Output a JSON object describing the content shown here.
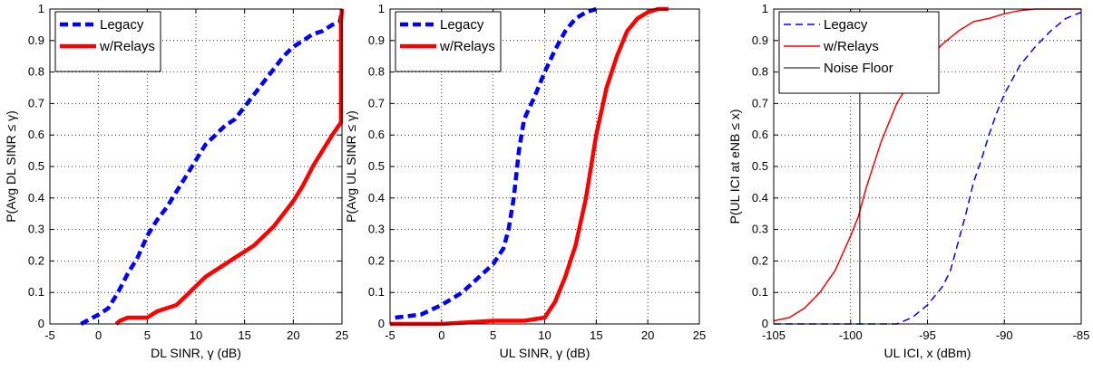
{
  "chart_data": [
    {
      "type": "line",
      "xlabel": "DL SINR, γ (dB)",
      "ylabel": "P(Avg DL SINR ≤ γ)",
      "xlim": [
        -5,
        25
      ],
      "ylim": [
        0,
        1
      ],
      "xticks": [
        "-5",
        "0",
        "5",
        "10",
        "15",
        "20",
        "25"
      ],
      "yticks": [
        "0",
        "0.1",
        "0.2",
        "0.3",
        "0.4",
        "0.5",
        "0.6",
        "0.7",
        "0.8",
        "0.9",
        "1"
      ],
      "grid": true,
      "legend": "top-left",
      "series": [
        {
          "name": "Legacy",
          "color": "#0000ff",
          "style": "dashed",
          "width": "thick",
          "x": [
            -1.8,
            -1.2,
            0,
            1,
            2,
            3,
            4,
            5,
            6,
            7,
            8,
            9,
            10,
            11,
            12,
            13,
            14,
            15,
            16,
            17,
            18,
            19,
            20,
            21,
            22,
            23,
            24,
            24.8,
            25
          ],
          "y": [
            0,
            0.01,
            0.03,
            0.05,
            0.1,
            0.16,
            0.21,
            0.28,
            0.33,
            0.37,
            0.42,
            0.47,
            0.52,
            0.57,
            0.6,
            0.63,
            0.65,
            0.69,
            0.73,
            0.77,
            0.81,
            0.85,
            0.88,
            0.9,
            0.92,
            0.93,
            0.95,
            0.96,
            1.0
          ]
        },
        {
          "name": "w/Relays",
          "color": "#ff0000",
          "style": "solid",
          "width": "thick",
          "x": [
            1.8,
            2.2,
            3,
            5,
            6,
            8,
            9,
            10,
            11,
            13,
            14,
            15,
            16,
            17,
            18,
            19,
            20,
            21,
            22,
            23,
            24,
            24.9,
            24.9,
            25
          ],
          "y": [
            0,
            0.01,
            0.02,
            0.02,
            0.04,
            0.06,
            0.09,
            0.12,
            0.15,
            0.19,
            0.21,
            0.23,
            0.25,
            0.28,
            0.31,
            0.35,
            0.39,
            0.44,
            0.5,
            0.55,
            0.6,
            0.64,
            0.96,
            1.0
          ]
        }
      ]
    },
    {
      "type": "line",
      "xlabel": "UL SINR, γ (dB)",
      "ylabel": "P(Avg UL SINR ≤ γ)",
      "xlim": [
        -5,
        25
      ],
      "ylim": [
        0,
        1
      ],
      "xticks": [
        "-5",
        "0",
        "5",
        "10",
        "15",
        "20",
        "25"
      ],
      "yticks": [
        "0",
        "0.1",
        "0.2",
        "0.3",
        "0.4",
        "0.5",
        "0.6",
        "0.7",
        "0.8",
        "0.9",
        "1"
      ],
      "grid": true,
      "legend": "top-left",
      "series": [
        {
          "name": "Legacy",
          "color": "#0000ff",
          "style": "dashed",
          "width": "thick",
          "x": [
            -4.5,
            -2,
            0,
            2,
            3,
            4,
            5,
            6,
            6.5,
            7,
            7.5,
            8,
            9,
            10,
            11,
            12,
            13,
            14,
            15
          ],
          "y": [
            0.02,
            0.03,
            0.06,
            0.1,
            0.13,
            0.16,
            0.19,
            0.24,
            0.3,
            0.4,
            0.55,
            0.65,
            0.72,
            0.8,
            0.87,
            0.93,
            0.97,
            0.99,
            1.0
          ]
        },
        {
          "name": "w/Relays",
          "color": "#ff0000",
          "style": "solid",
          "width": "thick",
          "x": [
            -5,
            0,
            5,
            8,
            10,
            11,
            12,
            13,
            14,
            15,
            16,
            17,
            18,
            19,
            20,
            21,
            22
          ],
          "y": [
            0,
            0,
            0.01,
            0.01,
            0.02,
            0.07,
            0.15,
            0.25,
            0.4,
            0.6,
            0.75,
            0.85,
            0.93,
            0.97,
            0.99,
            1.0,
            1.0
          ]
        }
      ]
    },
    {
      "type": "line",
      "xlabel": "UL ICI, x (dBm)",
      "ylabel": "P(UL ICI at eNB ≤ x)",
      "xlim": [
        -105,
        -85
      ],
      "ylim": [
        0,
        1
      ],
      "xticks": [
        "-105",
        "-100",
        "-95",
        "-90",
        "-85"
      ],
      "yticks": [
        "0",
        "0.1",
        "0.2",
        "0.3",
        "0.4",
        "0.5",
        "0.6",
        "0.7",
        "0.8",
        "0.9",
        "1"
      ],
      "grid": true,
      "legend": "top-left",
      "series": [
        {
          "name": "Legacy",
          "color": "#0000ff",
          "style": "dashed",
          "width": "thin",
          "x": [
            -105,
            -100,
            -97,
            -96,
            -95,
            -94,
            -93.5,
            -93,
            -92.5,
            -92,
            -91.5,
            -91,
            -90.5,
            -90,
            -89,
            -88,
            -87,
            -86,
            -85
          ],
          "y": [
            0,
            0,
            0,
            0.02,
            0.06,
            0.12,
            0.17,
            0.26,
            0.35,
            0.45,
            0.52,
            0.6,
            0.67,
            0.73,
            0.82,
            0.88,
            0.93,
            0.97,
            0.99
          ]
        },
        {
          "name": "w/Relays",
          "color": "#ff0000",
          "style": "solid",
          "width": "thin",
          "x": [
            -105,
            -104,
            -103,
            -102,
            -101,
            -100,
            -99.5,
            -99,
            -98,
            -97,
            -96,
            -95,
            -94,
            -93,
            -92,
            -91,
            -90,
            -89,
            -88,
            -86,
            -85
          ],
          "y": [
            0.01,
            0.02,
            0.05,
            0.1,
            0.17,
            0.28,
            0.34,
            0.43,
            0.58,
            0.7,
            0.78,
            0.84,
            0.89,
            0.93,
            0.96,
            0.97,
            0.985,
            0.995,
            1.0,
            1.0,
            1.0
          ]
        },
        {
          "name": "Noise Floor",
          "color": "#000000",
          "style": "solid",
          "width": "hair",
          "x": [
            -99.4,
            -99.4
          ],
          "y": [
            0,
            1
          ]
        }
      ]
    }
  ]
}
